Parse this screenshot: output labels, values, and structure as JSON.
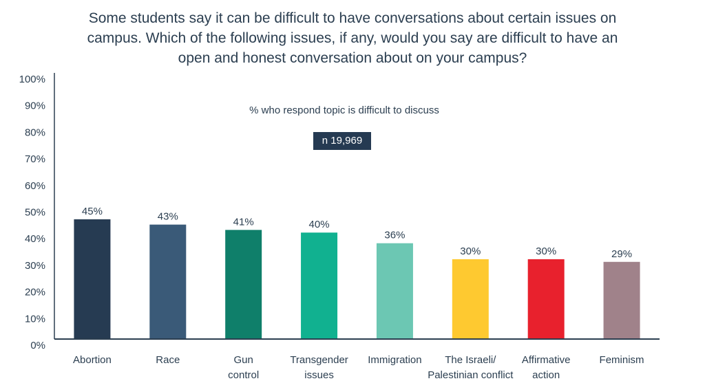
{
  "chart_data": {
    "type": "bar",
    "title_lines": [
      "Some students say it can be difficult to have conversations about certain issues on",
      "campus. Which of the following issues, if any, would you say are difficult to have an",
      "open and honest conversation about on your campus?"
    ],
    "subtitle": "% who respond topic is difficult to discuss",
    "sample_size_label": "n 19,969",
    "xlabel": "",
    "ylabel": "",
    "ylim": [
      0,
      100
    ],
    "y_ticks": [
      "0%",
      "10%",
      "20%",
      "30%",
      "40%",
      "50%",
      "60%",
      "70%",
      "80%",
      "90%",
      "100%"
    ],
    "grid": false,
    "legend": "none",
    "categories": [
      [
        "Abortion"
      ],
      [
        "Race"
      ],
      [
        "Gun",
        "control"
      ],
      [
        "Transgender",
        "issues"
      ],
      [
        "Immigration"
      ],
      [
        "The Israeli/",
        "Palestinian conflict"
      ],
      [
        "Affirmative",
        "action"
      ],
      [
        "Feminism"
      ]
    ],
    "values": [
      45,
      43,
      41,
      40,
      36,
      30,
      30,
      29
    ],
    "data_labels": [
      "45%",
      "43%",
      "41%",
      "40%",
      "36%",
      "30%",
      "30%",
      "29%"
    ],
    "colors": [
      "#263b52",
      "#3a5a78",
      "#0f7f6a",
      "#11b190",
      "#6cc7b3",
      "#fec930",
      "#e8212d",
      "#a0828a"
    ]
  }
}
